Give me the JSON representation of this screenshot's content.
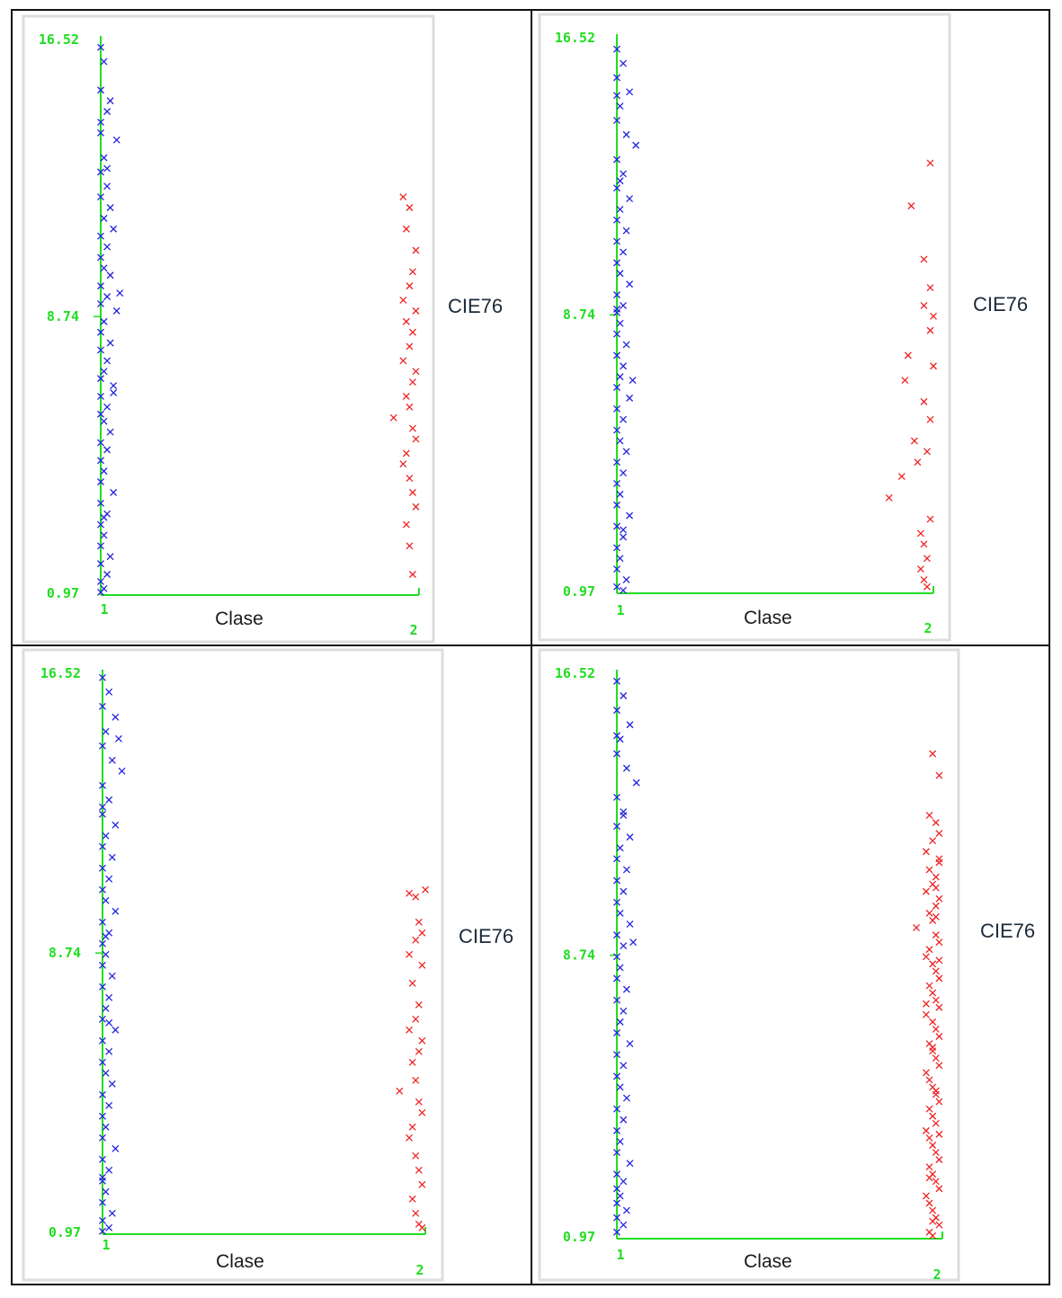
{
  "colors": {
    "axis": "#22dd22",
    "class1": "#2222dd",
    "class2": "#ee2222",
    "frame": "#dddddd"
  },
  "chart_data": [
    {
      "type": "scatter",
      "xlabel": "Clase",
      "side_label": "CIE76",
      "x_ticks": [
        "1",
        "2"
      ],
      "y_ticks": [
        "16.52",
        "8.74",
        "0.97"
      ],
      "ylim": [
        0.97,
        16.52
      ],
      "series": [
        {
          "class": 1,
          "x": [
            1.0,
            1.01,
            1.0,
            1.03,
            1.02,
            1.0,
            1.05,
            1.01,
            1.0,
            1.02,
            1.0,
            1.03,
            1.01,
            1.04,
            1.0,
            1.02,
            1.0,
            1.01,
            1.03,
            1.0,
            1.02,
            1.0,
            1.05,
            1.01,
            1.0,
            1.03,
            1.0,
            1.02,
            1.01,
            1.0,
            1.04,
            1.0,
            1.02,
            1.0,
            1.01,
            1.03,
            1.0,
            1.02,
            1.0,
            1.01,
            1.0,
            1.04,
            1.0,
            1.02,
            1.0,
            1.01,
            1.0,
            1.03,
            1.0,
            1.02,
            1.0,
            1.01,
            1.0,
            1.06,
            1.02,
            1.0,
            1.04,
            1.01
          ],
          "y": [
            16.3,
            15.9,
            15.1,
            14.8,
            14.5,
            13.9,
            13.7,
            13.2,
            12.8,
            12.4,
            12.1,
            11.8,
            11.5,
            11.2,
            11.0,
            10.7,
            10.4,
            10.1,
            9.9,
            9.6,
            9.3,
            9.1,
            8.9,
            8.6,
            8.3,
            8.0,
            7.8,
            7.5,
            7.2,
            7.0,
            6.8,
            6.5,
            6.2,
            6.0,
            5.8,
            5.5,
            5.2,
            5.0,
            4.7,
            4.4,
            4.1,
            3.8,
            3.5,
            3.2,
            2.9,
            2.6,
            2.3,
            2.0,
            1.8,
            1.5,
            1.3,
            1.1,
            1.0,
            9.4,
            12.9,
            14.2,
            6.6,
            3.1
          ]
        },
        {
          "class": 2,
          "x": [
            1.95,
            1.97,
            1.96,
            1.99,
            1.98,
            1.97,
            1.95,
            1.99,
            1.96,
            1.98,
            1.97,
            1.95,
            1.99,
            1.98,
            1.96,
            1.97,
            1.92,
            1.98,
            1.99,
            1.96,
            1.95,
            1.97,
            1.98,
            1.99,
            1.96,
            1.97,
            1.98
          ],
          "y": [
            12.1,
            11.8,
            11.2,
            10.6,
            10.0,
            9.6,
            9.2,
            8.9,
            8.6,
            8.3,
            7.9,
            7.5,
            7.2,
            6.9,
            6.5,
            6.2,
            5.9,
            5.6,
            5.3,
            4.9,
            4.6,
            4.2,
            3.8,
            3.4,
            2.9,
            2.3,
            1.5
          ]
        }
      ]
    },
    {
      "type": "scatter",
      "xlabel": "Clase",
      "side_label": "CIE76",
      "x_ticks": [
        "1",
        "2"
      ],
      "y_ticks": [
        "16.52",
        "8.74",
        "0.97"
      ],
      "ylim": [
        0.97,
        16.52
      ],
      "series": [
        {
          "class": 1,
          "x": [
            1.0,
            1.02,
            1.0,
            1.04,
            1.01,
            1.0,
            1.03,
            1.06,
            1.0,
            1.02,
            1.0,
            1.04,
            1.01,
            1.0,
            1.03,
            1.0,
            1.02,
            1.0,
            1.01,
            1.04,
            1.0,
            1.02,
            1.0,
            1.01,
            1.0,
            1.03,
            1.0,
            1.02,
            1.01,
            1.0,
            1.04,
            1.0,
            1.02,
            1.0,
            1.01,
            1.03,
            1.0,
            1.02,
            1.0,
            1.01,
            1.0,
            1.04,
            1.0,
            1.02,
            1.0,
            1.01,
            1.0,
            1.03,
            1.0,
            1.02,
            1.0,
            1.01,
            1.0,
            1.05,
            1.02
          ],
          "y": [
            16.2,
            15.8,
            15.4,
            15.0,
            14.6,
            14.2,
            13.8,
            13.5,
            13.1,
            12.7,
            12.3,
            12.0,
            11.7,
            11.4,
            11.1,
            10.8,
            10.5,
            10.2,
            9.9,
            9.6,
            9.3,
            9.0,
            8.8,
            8.5,
            8.2,
            7.9,
            7.6,
            7.3,
            7.0,
            6.7,
            6.4,
            6.1,
            5.8,
            5.5,
            5.2,
            4.9,
            4.6,
            4.3,
            4.0,
            3.7,
            3.4,
            3.1,
            2.8,
            2.5,
            2.2,
            1.9,
            1.6,
            1.3,
            1.1,
            1.0,
            8.9,
            12.5,
            14.9,
            6.9,
            2.7
          ]
        },
        {
          "class": 2,
          "x": [
            1.99,
            1.93,
            1.97,
            1.99,
            1.97,
            2.0,
            1.99,
            1.92,
            2.0,
            1.91,
            1.97,
            1.99,
            1.94,
            1.98,
            1.95,
            1.9,
            1.86,
            1.99,
            1.96,
            1.97,
            1.98,
            1.96,
            1.97,
            1.98
          ],
          "y": [
            13.0,
            11.8,
            10.3,
            9.5,
            9.0,
            8.7,
            8.3,
            7.6,
            7.3,
            6.9,
            6.3,
            5.8,
            5.2,
            4.9,
            4.6,
            4.2,
            3.6,
            3.0,
            2.6,
            2.3,
            1.9,
            1.6,
            1.3,
            1.1
          ]
        }
      ]
    },
    {
      "type": "scatter",
      "xlabel": "Clase",
      "side_label": "CIE76",
      "x_ticks": [
        "1",
        "2"
      ],
      "y_ticks": [
        "16.52",
        "8.74",
        "0.97"
      ],
      "ylim": [
        0.97,
        16.52
      ],
      "series": [
        {
          "class": 1,
          "x": [
            1.0,
            1.02,
            1.0,
            1.04,
            1.01,
            1.0,
            1.03,
            1.06,
            1.0,
            1.02,
            1.0,
            1.04,
            1.01,
            1.0,
            1.03,
            1.0,
            1.02,
            1.0,
            1.01,
            1.04,
            1.0,
            1.02,
            1.0,
            1.01,
            1.0,
            1.03,
            1.0,
            1.02,
            1.01,
            1.0,
            1.04,
            1.0,
            1.02,
            1.0,
            1.01,
            1.03,
            1.0,
            1.02,
            1.0,
            1.01,
            1.0,
            1.04,
            1.0,
            1.02,
            1.0,
            1.01,
            1.0,
            1.03,
            1.0,
            1.02,
            1.0,
            1.01,
            1.0,
            1.05,
            1.02,
            1.0
          ],
          "y": [
            16.4,
            16.0,
            15.6,
            15.3,
            14.9,
            14.5,
            14.1,
            13.8,
            13.4,
            13.0,
            12.6,
            12.3,
            12.0,
            11.7,
            11.4,
            11.1,
            10.8,
            10.5,
            10.2,
            9.9,
            9.6,
            9.3,
            9.0,
            8.7,
            8.4,
            8.1,
            7.8,
            7.5,
            7.2,
            6.9,
            6.6,
            6.3,
            6.0,
            5.7,
            5.4,
            5.1,
            4.8,
            4.5,
            4.2,
            3.9,
            3.6,
            3.3,
            3.0,
            2.7,
            2.4,
            2.1,
            1.8,
            1.5,
            1.3,
            1.1,
            1.0,
            9.2,
            12.8,
            14.7,
            6.8,
            2.5
          ]
        },
        {
          "class": 2,
          "x": [
            1.95,
            1.97,
            2.0,
            1.98,
            1.99,
            1.97,
            1.95,
            1.99,
            1.96,
            1.98,
            1.97,
            1.95,
            1.99,
            1.98,
            1.96,
            1.97,
            1.92,
            1.98,
            1.99,
            1.96,
            1.95,
            1.97,
            1.98,
            1.99,
            1.96,
            1.97,
            1.98,
            1.99
          ],
          "y": [
            10.4,
            10.3,
            10.5,
            9.6,
            9.3,
            9.1,
            8.7,
            8.4,
            7.9,
            7.3,
            6.9,
            6.6,
            6.3,
            6.0,
            5.7,
            5.2,
            4.9,
            4.6,
            4.3,
            3.9,
            3.6,
            3.1,
            2.7,
            2.3,
            1.9,
            1.5,
            1.2,
            1.1
          ]
        }
      ]
    },
    {
      "type": "scatter",
      "xlabel": "Clase",
      "side_label": "CIE76",
      "x_ticks": [
        "1",
        "2"
      ],
      "y_ticks": [
        "16.52",
        "8.74",
        "0.97"
      ],
      "ylim": [
        0.97,
        16.52
      ],
      "series": [
        {
          "class": 1,
          "x": [
            1.0,
            1.02,
            1.0,
            1.04,
            1.01,
            1.0,
            1.03,
            1.06,
            1.0,
            1.02,
            1.0,
            1.04,
            1.01,
            1.0,
            1.03,
            1.0,
            1.02,
            1.0,
            1.01,
            1.04,
            1.0,
            1.02,
            1.0,
            1.01,
            1.0,
            1.03,
            1.0,
            1.02,
            1.01,
            1.0,
            1.04,
            1.0,
            1.02,
            1.0,
            1.01,
            1.03,
            1.0,
            1.02,
            1.0,
            1.01,
            1.0,
            1.04,
            1.0,
            1.02,
            1.0,
            1.01,
            1.0,
            1.03,
            1.0,
            1.02,
            1.0,
            1.05,
            1.02,
            1.0
          ],
          "y": [
            16.3,
            15.9,
            15.5,
            15.1,
            14.7,
            14.3,
            13.9,
            13.5,
            13.1,
            12.7,
            12.3,
            12.0,
            11.7,
            11.4,
            11.1,
            10.8,
            10.5,
            10.2,
            9.9,
            9.6,
            9.3,
            9.0,
            8.7,
            8.4,
            8.1,
            7.8,
            7.5,
            7.2,
            6.9,
            6.6,
            6.3,
            6.0,
            5.7,
            5.4,
            5.1,
            4.8,
            4.5,
            4.2,
            3.9,
            3.6,
            3.3,
            3.0,
            2.7,
            2.5,
            2.3,
            2.1,
            1.9,
            1.7,
            1.5,
            1.3,
            1.1,
            9.1,
            12.6,
            14.8
          ]
        },
        {
          "class": 2,
          "x": [
            1.97,
            1.99,
            1.96,
            1.98,
            1.99,
            1.97,
            1.95,
            1.99,
            1.96,
            1.98,
            1.97,
            1.95,
            1.99,
            1.98,
            1.96,
            1.97,
            1.92,
            1.98,
            1.99,
            1.96,
            1.95,
            1.97,
            1.98,
            1.99,
            1.96,
            1.97,
            1.98,
            1.99,
            1.95,
            1.97,
            1.98,
            1.99,
            1.96,
            1.97,
            1.98,
            1.99,
            1.95,
            1.96,
            1.97,
            1.98,
            1.99,
            1.96,
            1.97,
            1.98,
            1.95,
            1.96,
            1.97,
            1.98,
            1.99,
            1.96,
            1.97,
            1.98,
            1.99,
            1.95,
            1.96,
            1.97,
            1.98,
            1.99,
            1.96,
            1.97,
            1.98,
            1.99,
            1.95,
            1.97,
            1.98,
            1.99,
            1.96,
            1.97,
            1.98,
            1.99
          ],
          "y": [
            14.3,
            13.7,
            12.6,
            12.4,
            12.1,
            11.9,
            11.6,
            11.3,
            11.1,
            10.9,
            10.7,
            10.5,
            10.3,
            10.1,
            9.9,
            9.7,
            9.5,
            9.3,
            9.1,
            8.9,
            8.7,
            8.5,
            8.3,
            8.1,
            7.9,
            7.7,
            7.5,
            7.3,
            7.1,
            6.9,
            6.7,
            6.5,
            6.3,
            6.1,
            5.9,
            5.7,
            5.5,
            5.3,
            5.1,
            4.9,
            4.7,
            4.5,
            4.3,
            4.1,
            3.9,
            3.7,
            3.5,
            3.3,
            3.1,
            2.9,
            2.7,
            2.5,
            2.3,
            2.1,
            1.9,
            1.7,
            1.5,
            1.3,
            1.1,
            1.0,
            9.8,
            8.6,
            7.4,
            6.2,
            5.0,
            3.8,
            2.6,
            1.4,
            10.6,
            11.4
          ]
        }
      ]
    }
  ]
}
